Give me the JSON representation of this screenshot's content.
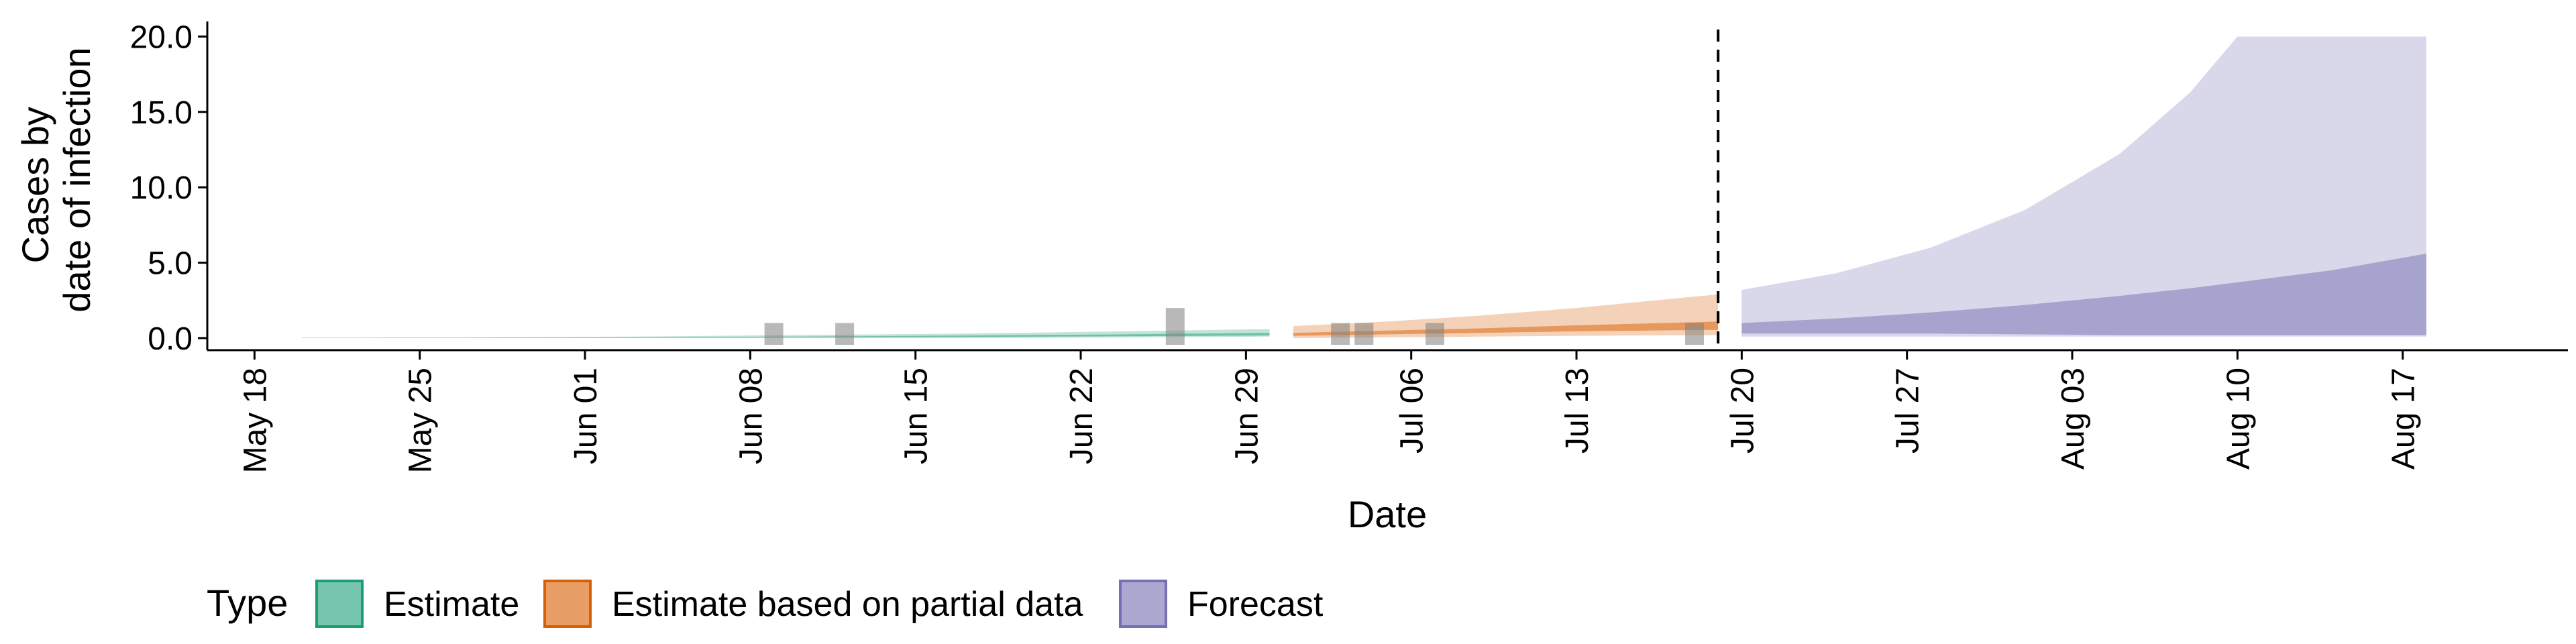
{
  "chart_data": {
    "type": "area",
    "xlabel": "Date",
    "ylabel_lines": [
      "Cases by",
      "date of infection"
    ],
    "ylim": [
      -0.8,
      21
    ],
    "yticks": [
      0,
      5,
      10,
      15,
      20
    ],
    "ytick_labels": [
      "0.0",
      "5.0",
      "10.0",
      "15.0",
      "20.0"
    ],
    "xlim": [
      "2020-05-16",
      "2020-08-24"
    ],
    "xticks": [
      "2020-05-18",
      "2020-05-25",
      "2020-06-01",
      "2020-06-08",
      "2020-06-15",
      "2020-06-22",
      "2020-06-29",
      "2020-07-06",
      "2020-07-13",
      "2020-07-20",
      "2020-07-27",
      "2020-08-03",
      "2020-08-10",
      "2020-08-17"
    ],
    "xtick_labels": [
      "May 18",
      "May 25",
      "Jun 01",
      "Jun 08",
      "Jun 15",
      "Jun 22",
      "Jun 29",
      "Jul 06",
      "Jul 13",
      "Jul 20",
      "Jul 27",
      "Aug 03",
      "Aug 10",
      "Aug 17"
    ],
    "forecast_line_date": "2020-07-19",
    "observed_cases": [
      {
        "date": "2020-06-09",
        "value": 1
      },
      {
        "date": "2020-06-12",
        "value": 1
      },
      {
        "date": "2020-06-26",
        "value": 2
      },
      {
        "date": "2020-07-03",
        "value": 1
      },
      {
        "date": "2020-07-04",
        "value": 1
      },
      {
        "date": "2020-07-07",
        "value": 1
      },
      {
        "date": "2020-07-18",
        "value": 1
      }
    ],
    "series": [
      {
        "name": "Estimate",
        "color": "#1b9e77",
        "dates": [
          "2020-05-20",
          "2020-05-27",
          "2020-06-03",
          "2020-06-10",
          "2020-06-17",
          "2020-06-24",
          "2020-06-30"
        ],
        "outer_lower": [
          0.0,
          0.0,
          0.0,
          0.0,
          0.0,
          0.05,
          0.1
        ],
        "outer_upper": [
          0.03,
          0.05,
          0.1,
          0.2,
          0.3,
          0.45,
          0.6
        ],
        "inner_lower": [
          0.0,
          0.0,
          0.02,
          0.05,
          0.08,
          0.12,
          0.18
        ],
        "inner_upper": [
          0.01,
          0.02,
          0.05,
          0.1,
          0.17,
          0.25,
          0.35
        ]
      },
      {
        "name": "Estimate based on partial data",
        "color": "#d95f02",
        "dates": [
          "2020-07-01",
          "2020-07-05",
          "2020-07-09",
          "2020-07-13",
          "2020-07-19"
        ],
        "outer_lower": [
          0.0,
          0.05,
          0.1,
          0.15,
          0.2
        ],
        "outer_upper": [
          0.8,
          1.1,
          1.5,
          2.0,
          2.9
        ],
        "inner_lower": [
          0.15,
          0.25,
          0.35,
          0.45,
          0.55
        ],
        "inner_upper": [
          0.35,
          0.5,
          0.65,
          0.85,
          1.1
        ]
      },
      {
        "name": "Forecast",
        "color": "#7570b3",
        "dates": [
          "2020-07-20",
          "2020-07-24",
          "2020-07-28",
          "2020-08-01",
          "2020-08-05",
          "2020-08-08",
          "2020-08-10",
          "2020-08-14",
          "2020-08-18"
        ],
        "outer_lower": [
          0.1,
          0.1,
          0.1,
          0.1,
          0.1,
          0.1,
          0.1,
          0.1,
          0.1
        ],
        "outer_upper": [
          3.2,
          4.3,
          6.0,
          8.5,
          12.2,
          16.3,
          20.0,
          20.0,
          20.0
        ],
        "inner_lower": [
          0.3,
          0.3,
          0.3,
          0.25,
          0.2,
          0.2,
          0.2,
          0.2,
          0.2
        ],
        "inner_upper": [
          1.0,
          1.3,
          1.7,
          2.2,
          2.8,
          3.3,
          3.7,
          4.5,
          5.6
        ]
      }
    ],
    "legend": {
      "title": "Type",
      "position": "bottom",
      "items": [
        "Estimate",
        "Estimate based on partial data",
        "Forecast"
      ]
    },
    "grid": false
  }
}
